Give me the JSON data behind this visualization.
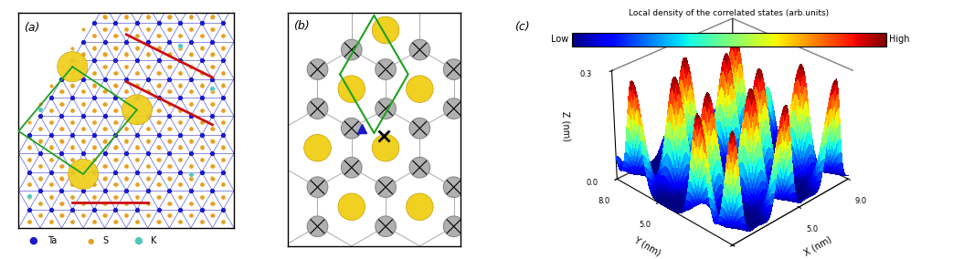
{
  "fig_width": 10.43,
  "fig_height": 2.84,
  "dpi": 100,
  "panel_a_label": "(a)",
  "panel_b_label": "(b)",
  "panel_c_label": "(c)",
  "colorbar_title": "Local density of the correlated states (arb.units)",
  "colorbar_low": "Low",
  "colorbar_high": "High",
  "z_label": "Z (nm)",
  "x_label": "X (nm)",
  "y_label": "Y (nm)",
  "bg_color": "#ffffff",
  "ta_color": "#1a1acc",
  "s_color": "#e8a020",
  "k_color": "#50c8c0",
  "k_large_color": "#f0d020",
  "red_bond_color": "#cc1010",
  "green_color": "#20a020",
  "gray_atom_color": "#b0b0b0",
  "gray_bond_color": "#aaaaaa",
  "honeycomb_red": "#cc1010",
  "bond_blue": "#1a1acc"
}
